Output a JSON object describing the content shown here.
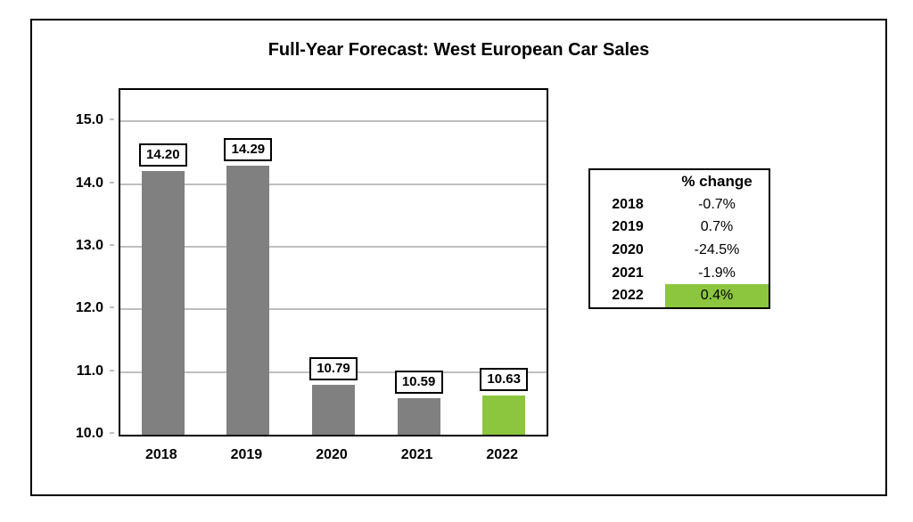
{
  "title": "Full-Year Forecast: West European Car Sales",
  "chart_data": {
    "type": "bar",
    "title": "Full-Year Forecast: West European Car Sales",
    "categories": [
      "2018",
      "2019",
      "2020",
      "2021",
      "2022"
    ],
    "values": [
      14.2,
      14.29,
      10.79,
      10.59,
      10.63
    ],
    "bar_labels": [
      "14.20",
      "14.29",
      "10.79",
      "10.59",
      "10.63"
    ],
    "xlabel": "",
    "ylabel": "",
    "ylim": [
      10.0,
      15.5
    ],
    "yticks": [
      10.0,
      11.0,
      12.0,
      13.0,
      14.0,
      15.0
    ],
    "ytick_labels": [
      "10.0",
      "11.0",
      "12.0",
      "13.0",
      "14.0",
      "15.0"
    ],
    "grid": true,
    "legend": false,
    "bar_colors": [
      "#808080",
      "#808080",
      "#808080",
      "#808080",
      "#8CC63F"
    ]
  },
  "table": {
    "header_change": "% change",
    "rows": [
      {
        "year": "2018",
        "change": "-0.7%",
        "highlight": false
      },
      {
        "year": "2019",
        "change": "0.7%",
        "highlight": false
      },
      {
        "year": "2020",
        "change": "-24.5%",
        "highlight": false
      },
      {
        "year": "2021",
        "change": "-1.9%",
        "highlight": false
      },
      {
        "year": "2022",
        "change": "0.4%",
        "highlight": true
      }
    ]
  },
  "colors": {
    "bar_gray": "#808080",
    "accent_green": "#8CC63F",
    "gridline": "#BFBFBF",
    "border": "#000000",
    "background": "#FFFFFF"
  }
}
